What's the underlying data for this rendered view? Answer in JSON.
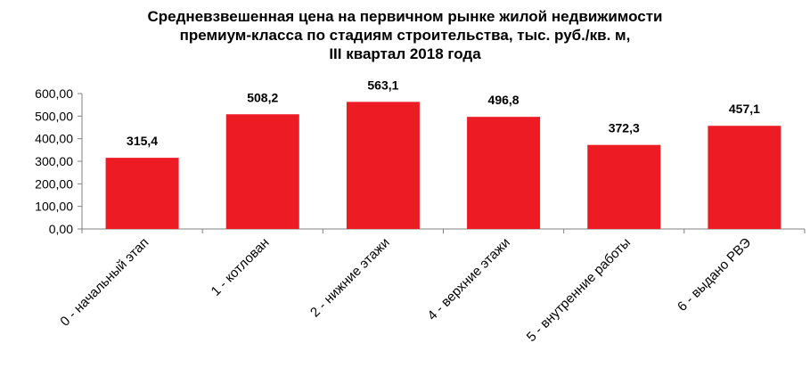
{
  "chart_data": {
    "type": "bar",
    "title_lines": [
      "Средневзвешенная цена на первичном рынке жилой недвижимости",
      "премиум-класса по стадиям строительства, тыс. руб./кв. м,",
      "III квартал 2018 года"
    ],
    "categories": [
      "0 - начальный этап",
      "1 - котлован",
      "2 - нижние этажи",
      "4 - верхние этажи",
      "5 - внутренние работы",
      "6 - выдано РВЭ"
    ],
    "values": [
      315.4,
      508.2,
      563.1,
      496.8,
      372.3,
      457.1
    ],
    "data_labels": [
      "315,4",
      "508,2",
      "563,1",
      "496,8",
      "372,3",
      "457,1"
    ],
    "y_ticks": [
      "0,00",
      "100,00",
      "200,00",
      "300,00",
      "400,00",
      "500,00",
      "600,00"
    ],
    "ylim": [
      0,
      600
    ],
    "grid": false,
    "bar_color": "#ED1C24",
    "xlabel": "",
    "ylabel": ""
  }
}
